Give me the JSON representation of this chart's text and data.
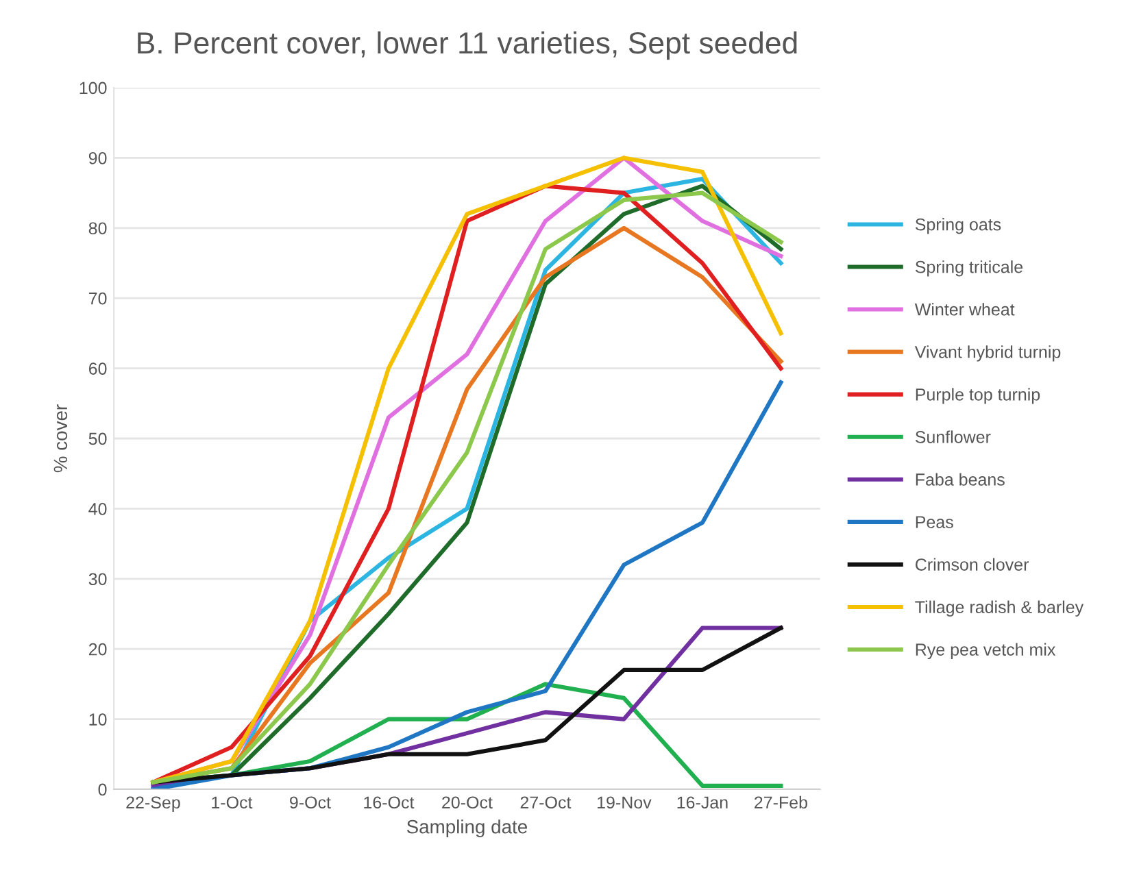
{
  "chart_data": {
    "type": "line",
    "title": "B. Percent cover, lower 11 varieties, Sept seeded",
    "xlabel": "Sampling date",
    "ylabel": "% cover",
    "categories": [
      "22-Sep",
      "1-Oct",
      "9-Oct",
      "16-Oct",
      "20-Oct",
      "27-Oct",
      "19-Nov",
      "16-Jan",
      "27-Feb"
    ],
    "series": [
      {
        "name": "Spring oats",
        "color": "#2cb5e0",
        "values": [
          1,
          2,
          24,
          33,
          40,
          74,
          85,
          87,
          75
        ]
      },
      {
        "name": "Spring triticale",
        "color": "#1e6b2a",
        "values": [
          1,
          2,
          13,
          25,
          38,
          72,
          82,
          86,
          77
        ]
      },
      {
        "name": "Winter wheat",
        "color": "#e070e0",
        "values": [
          1,
          4,
          22,
          53,
          62,
          81,
          90,
          81,
          76
        ]
      },
      {
        "name": "Vivant hybrid turnip",
        "color": "#e87722",
        "values": [
          1,
          3,
          18,
          28,
          57,
          73,
          80,
          73,
          61
        ]
      },
      {
        "name": "Purple top turnip",
        "color": "#e02020",
        "values": [
          1,
          6,
          19,
          40,
          81,
          86,
          85,
          75,
          60
        ]
      },
      {
        "name": "Sunflower",
        "color": "#20b050",
        "values": [
          1,
          2,
          4,
          10,
          10,
          15,
          13,
          0.5,
          0.5
        ]
      },
      {
        "name": "Faba beans",
        "color": "#7030a0",
        "values": [
          0.5,
          2,
          3,
          5,
          8,
          11,
          10,
          23,
          23
        ]
      },
      {
        "name": "Peas",
        "color": "#1f77c4",
        "values": [
          0,
          2,
          3,
          6,
          11,
          14,
          32,
          38,
          58
        ]
      },
      {
        "name": "Crimson clover",
        "color": "#111111",
        "values": [
          1,
          2,
          3,
          5,
          5,
          7,
          17,
          17,
          23
        ]
      },
      {
        "name": "Tillage radish & barley",
        "color": "#f5c000",
        "values": [
          1,
          4,
          24,
          60,
          82,
          86,
          90,
          88,
          65
        ]
      },
      {
        "name": "Rye pea vetch mix",
        "color": "#8cc84b",
        "values": [
          1,
          3,
          15,
          32,
          48,
          77,
          84,
          85,
          78
        ]
      }
    ],
    "ylim": [
      0,
      100
    ],
    "yticks": [
      0,
      10,
      20,
      30,
      40,
      50,
      60,
      70,
      80,
      90,
      100
    ],
    "grid": "y",
    "legend": "right",
    "marker": "none",
    "line_style": "solid"
  }
}
